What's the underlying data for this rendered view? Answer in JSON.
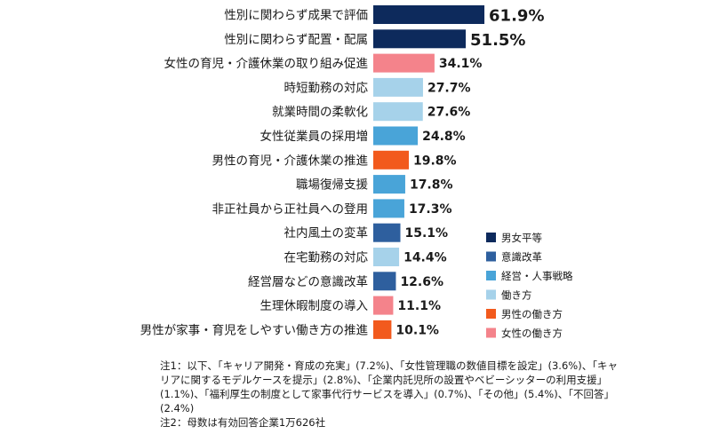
{
  "chart_data": {
    "type": "bar",
    "orientation": "horizontal",
    "categories": [
      "性別に関わらず成果で評価",
      "性別に関わらず配置・配属",
      "女性の育児・介護休業の取り組み促進",
      "時短勤務の対応",
      "就業時間の柔軟化",
      "女性従業員の採用増",
      "男性の育児・介護休業の推進",
      "職場復帰支援",
      "非正社員から正社員への登用",
      "社内風土の変革",
      "在宅勤務の対応",
      "経営層などの意識改革",
      "生理休暇制度の導入",
      "男性が家事・育児をしやすい働き方の推進"
    ],
    "values": [
      61.9,
      51.5,
      34.1,
      27.7,
      27.6,
      24.8,
      19.8,
      17.8,
      17.3,
      15.1,
      14.4,
      12.6,
      11.1,
      10.1
    ],
    "value_labels": [
      "61.9%",
      "51.5%",
      "34.1%",
      "27.7%",
      "27.6%",
      "24.8%",
      "19.8%",
      "17.8%",
      "17.3%",
      "15.1%",
      "14.4%",
      "12.6%",
      "11.1%",
      "10.1%"
    ],
    "groups": [
      "男女平等",
      "男女平等",
      "女性の働き方",
      "働き方",
      "働き方",
      "経営・人事戦略",
      "男性の働き方",
      "経営・人事戦略",
      "経営・人事戦略",
      "意識改革",
      "働き方",
      "意識改革",
      "女性の働き方",
      "男性の働き方"
    ],
    "xlim": [
      0,
      70
    ],
    "legend": {
      "placement": "right",
      "items": [
        {
          "name": "男女平等",
          "color": "#0d2a5c"
        },
        {
          "name": "意識改革",
          "color": "#2e5f9e"
        },
        {
          "name": "経営・人事戦略",
          "color": "#49a4d8"
        },
        {
          "name": "働き方",
          "color": "#a6d2ea"
        },
        {
          "name": "男性の働き方",
          "color": "#f25a1d"
        },
        {
          "name": "女性の働き方",
          "color": "#f4838b"
        }
      ]
    }
  },
  "notes": {
    "note1": "注1：以下、「キャリア開発・育成の充実」(7.2%)、「女性管理職の数値目標を設定」(3.6%)、「キャリアに関するモデルケースを提示」(2.8%)、「企業内託児所の設置やベビーシッターの利用支援」(1.1%)、「福利厚生の制度として家事代行サービスを導入」(0.7%)、「その他」(5.4%)、「不回答」(2.4%)",
    "note2": "注2：母数は有効回答企業1万626社"
  }
}
